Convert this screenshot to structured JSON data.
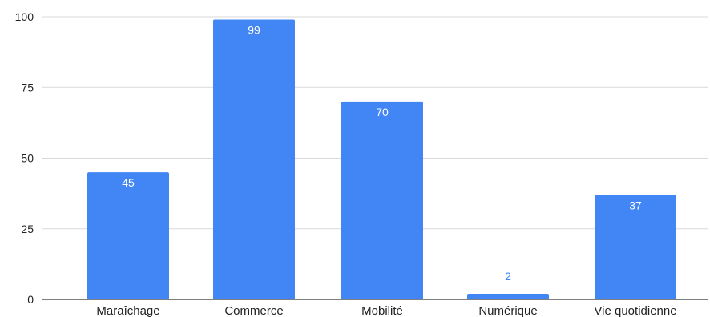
{
  "chart_data": {
    "type": "bar",
    "title": "",
    "xlabel": "",
    "ylabel": "",
    "categories": [
      "Maraîchage",
      "Commerce",
      "Mobilité",
      "Numérique",
      "Vie quotidienne"
    ],
    "values": [
      45,
      99,
      70,
      2,
      37
    ],
    "data_labels": [
      "45",
      "99",
      "70",
      "2",
      "37"
    ],
    "yticks": [
      0,
      25,
      50,
      75,
      100
    ],
    "ytick_labels": [
      "0",
      "25",
      "50",
      "75",
      "100"
    ],
    "ylim": [
      0,
      100
    ],
    "grid": true,
    "legend": "none",
    "colors": {
      "bar": "#4285f4",
      "label_inside": "#ffffff",
      "label_outside": "#4285f4",
      "grid": "#d9d9d9",
      "axis": "#333333"
    }
  }
}
